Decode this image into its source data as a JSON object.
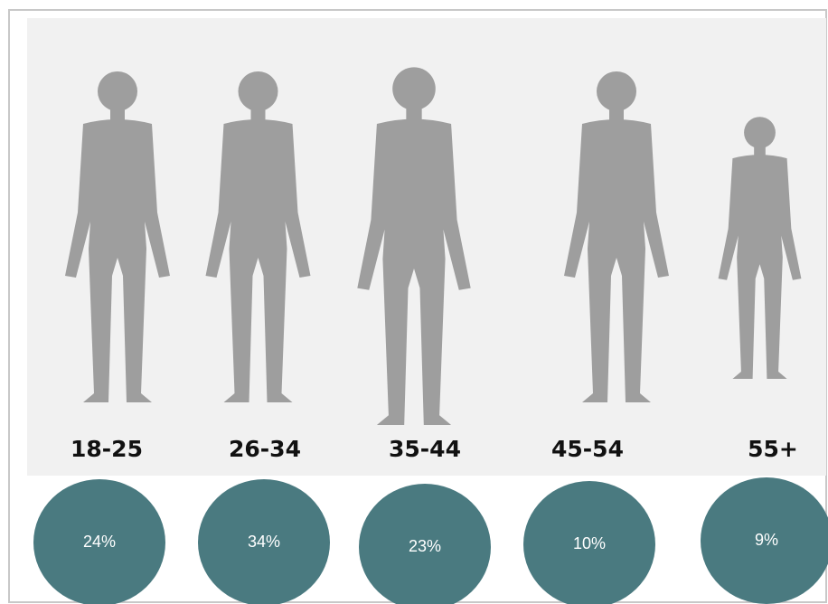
{
  "groups": [
    {
      "age": "18-25",
      "share": "24%"
    },
    {
      "age": "26-34",
      "share": "34%"
    },
    {
      "age": "35-44",
      "share": "23%"
    },
    {
      "age": "45-54",
      "share": "10%"
    },
    {
      "age": "55+",
      "share": "9%"
    }
  ]
}
